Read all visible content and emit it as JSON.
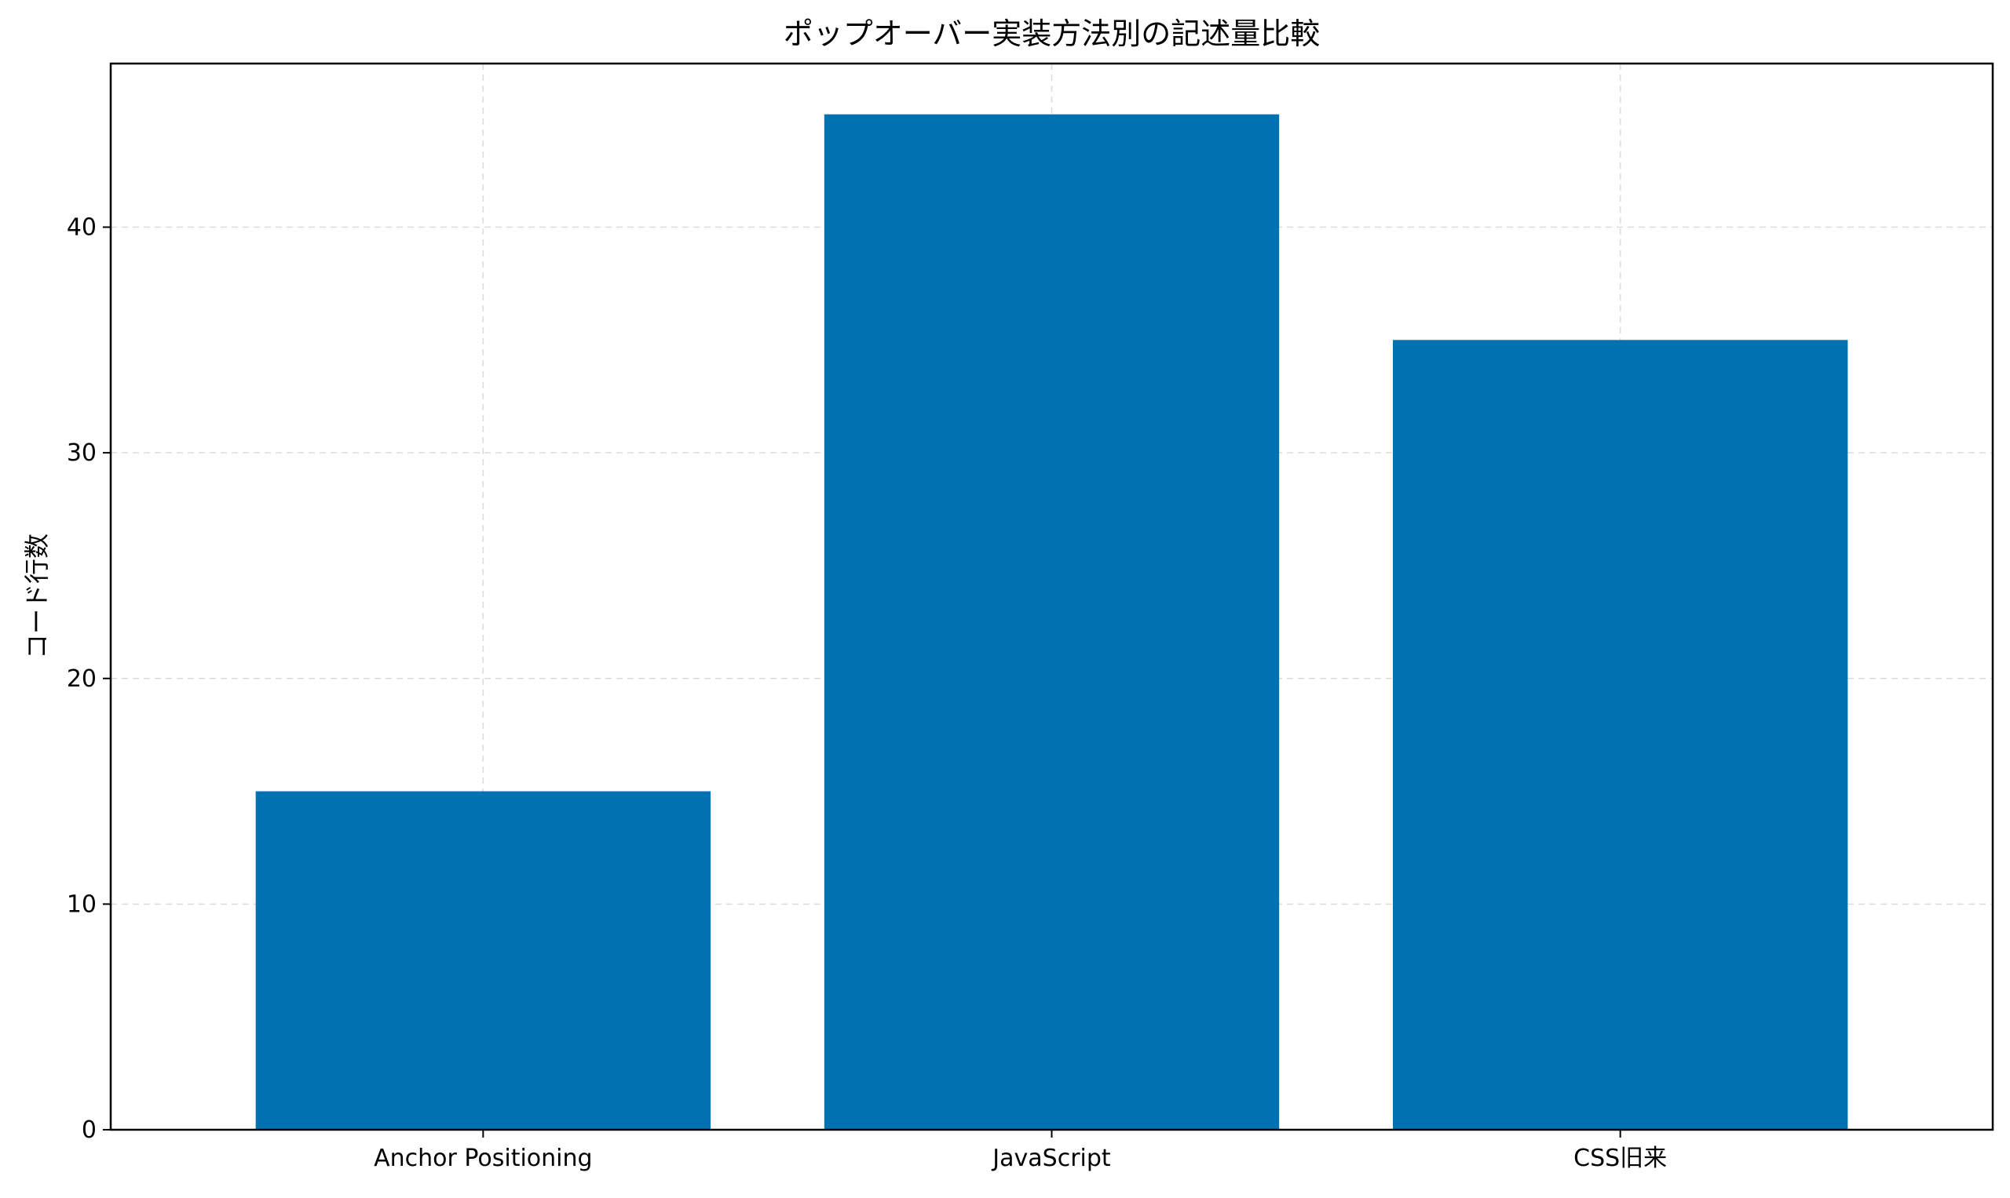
{
  "chart_data": {
    "type": "bar",
    "title": "ポップオーバー実装方法別の記述量比較",
    "xlabel": "",
    "ylabel": "コード行数",
    "categories": [
      "Anchor Positioning",
      "JavaScript",
      "CSS旧来"
    ],
    "values": [
      15,
      45,
      35
    ],
    "ylim": [
      0,
      47.25
    ],
    "yticks": [
      0,
      10,
      20,
      30,
      40
    ],
    "ytick_labels": [
      "0",
      "10",
      "20",
      "30",
      "40"
    ],
    "grid": true,
    "bar_color": "#0072b2"
  }
}
